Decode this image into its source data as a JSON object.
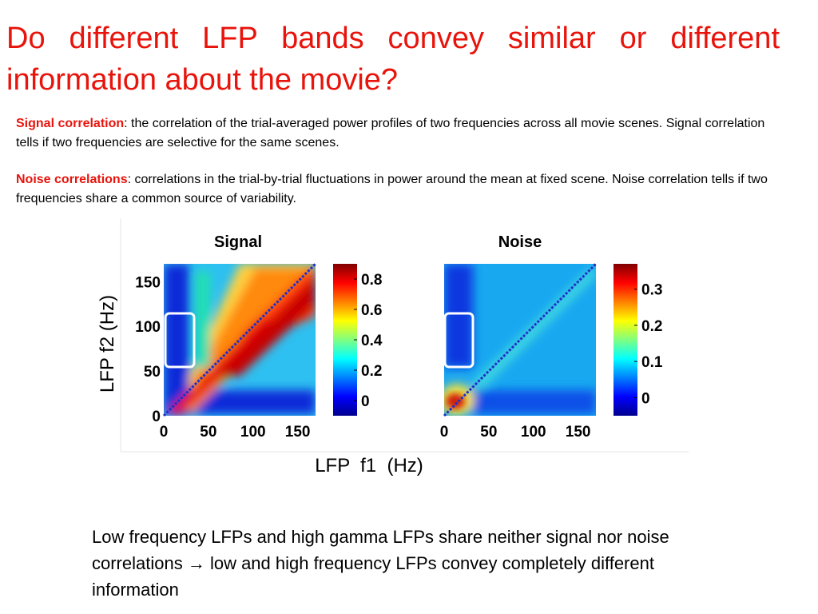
{
  "slide": {
    "title": "Do different LFP bands convey similar or different information about the movie?",
    "definitions": [
      {
        "term": "Signal correlation",
        "text": ": the correlation of the trial-averaged  power profiles of two frequencies across all movie scenes. Signal correlation tells if two frequencies are selective for the same scenes."
      },
      {
        "term": "Noise correlations",
        "text": ": correlations in the trial-by-trial fluctuations in power around the mean at fixed scene. Noise correlation tells if two frequencies share a common source of variability."
      }
    ],
    "conclusion": "Low frequency LFPs and high gamma LFPs share neither signal nor noise correlations → low and high frequency LFPs convey completely different information",
    "colors": {
      "title_red": "#e8140c",
      "highlight_box": "#ffffff",
      "diagonal": "#2030c8"
    }
  },
  "chart_data": [
    {
      "type": "heatmap",
      "title": "Signal",
      "xlabel": "LFP  f1  (Hz)",
      "ylabel": "LFP f2 (Hz)",
      "xlim": [
        0,
        170
      ],
      "ylim": [
        0,
        170
      ],
      "x_ticks": [
        0,
        50,
        100,
        150
      ],
      "y_ticks": [
        0,
        50,
        100,
        150
      ],
      "colorbar": {
        "range": [
          -0.1,
          0.9
        ],
        "ticks": [
          0,
          0.2,
          0.4,
          0.6,
          0.8
        ],
        "tick_labels": [
          "0",
          "0.2",
          "0.4",
          "0.6",
          "0.8"
        ],
        "colormap": "jet"
      },
      "highlight_region": {
        "f1": [
          0,
          30
        ],
        "f2": [
          55,
          115
        ]
      },
      "diagonal_value": "self (excluded)"
    },
    {
      "type": "heatmap",
      "title": "Noise",
      "xlabel": "LFP  f1  (Hz)",
      "ylabel": "LFP f2 (Hz)",
      "xlim": [
        0,
        170
      ],
      "ylim": [
        0,
        170
      ],
      "x_ticks": [
        0,
        50,
        100,
        150
      ],
      "y_ticks": [],
      "colorbar": {
        "range": [
          -0.05,
          0.37
        ],
        "ticks": [
          0,
          0.1,
          0.2,
          0.3
        ],
        "tick_labels": [
          "0",
          "0.1",
          "0.2",
          "0.3"
        ],
        "colormap": "jet"
      },
      "highlight_region": {
        "f1": [
          0,
          30
        ],
        "f2": [
          55,
          115
        ]
      },
      "diagonal_value": "self (excluded)"
    }
  ]
}
